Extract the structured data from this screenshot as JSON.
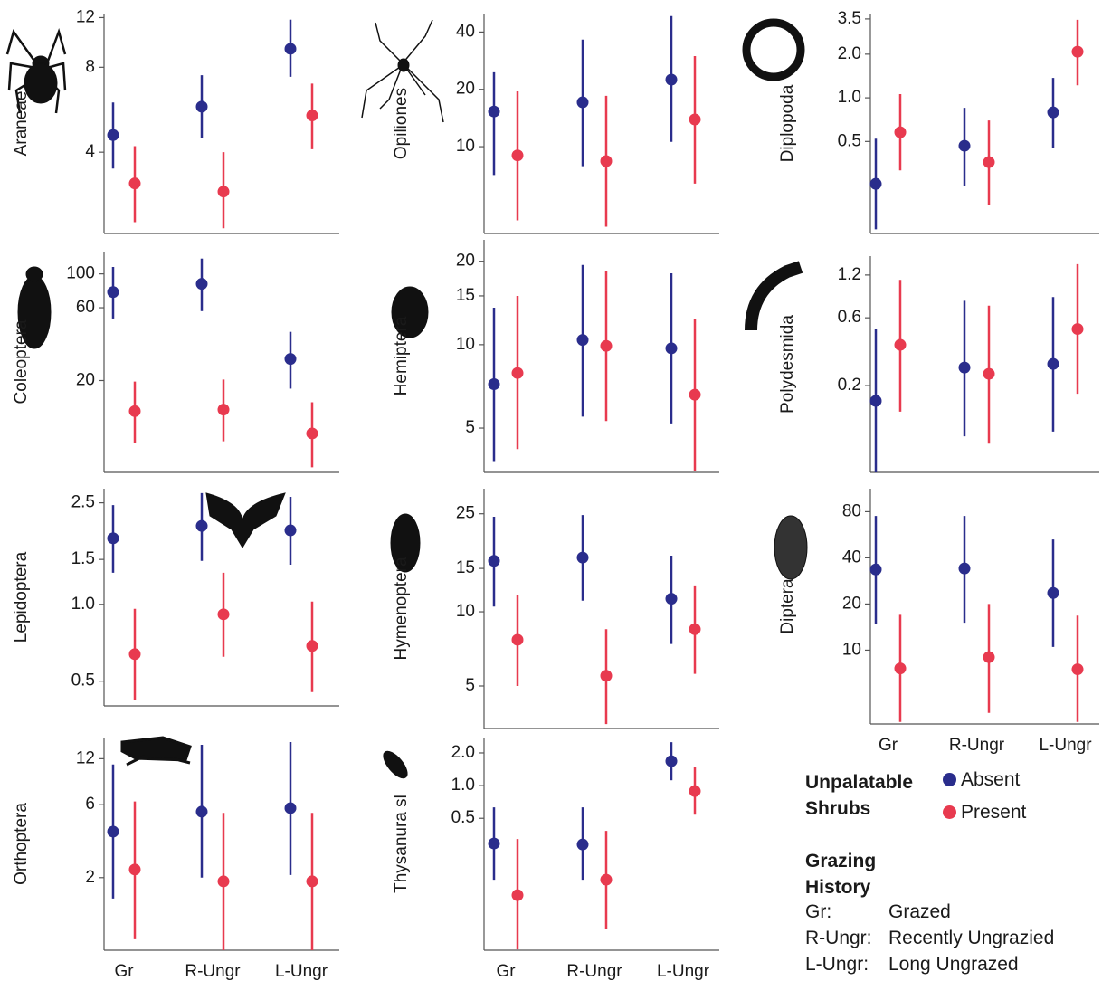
{
  "chart_data": [
    {
      "type": "errorbar",
      "ylabel": "Araneae",
      "log_scale": true,
      "ylim": [
        2.06,
        12.4
      ],
      "yticks": [
        4,
        8,
        12
      ],
      "categories": [
        null,
        null,
        null
      ],
      "series": [
        {
          "values": [
            4.6,
            5.8,
            9.3
          ],
          "lower": [
            3.5,
            4.5,
            7.4
          ],
          "upper": [
            6.0,
            7.5,
            11.8
          ]
        },
        {
          "values": [
            3.1,
            2.9,
            5.4
          ],
          "lower": [
            2.26,
            2.15,
            4.1
          ],
          "upper": [
            4.2,
            4.0,
            7.0
          ]
        }
      ]
    },
    {
      "type": "errorbar",
      "ylabel": "Opiliones",
      "log_scale": true,
      "ylim": [
        3.5,
        50
      ],
      "yticks": [
        10,
        20,
        40
      ],
      "categories": [
        null,
        null,
        null
      ],
      "series": [
        {
          "values": [
            15.3,
            17.1,
            22.5
          ],
          "lower": [
            7.1,
            7.9,
            10.6
          ],
          "upper": [
            24.6,
            36.5,
            48.5
          ]
        },
        {
          "values": [
            9.0,
            8.4,
            13.9
          ],
          "lower": [
            4.1,
            3.8,
            6.4
          ],
          "upper": [
            19.5,
            18.5,
            29.9
          ]
        }
      ]
    },
    {
      "type": "errorbar",
      "ylabel": "Diplopoda",
      "log_scale": true,
      "ylim": [
        0.116,
        3.81
      ],
      "yticks": [
        0.5,
        {
          "value": 1,
          "label": "1.0"
        },
        {
          "value": 2,
          "label": "2.0"
        },
        3.5
      ],
      "categories": [
        null,
        null,
        null
      ],
      "series": [
        {
          "values": [
            0.255,
            0.467,
            0.794
          ],
          "lower": [
            0.124,
            0.247,
            0.453
          ],
          "upper": [
            0.523,
            0.854,
            1.37
          ]
        },
        {
          "values": [
            0.579,
            0.36,
            2.08
          ],
          "lower": [
            0.316,
            0.183,
            1.22
          ],
          "upper": [
            1.06,
            0.698,
            3.45
          ]
        }
      ]
    },
    {
      "type": "errorbar",
      "ylabel": "Coleoptera",
      "log_scale": true,
      "ylim": [
        5.0,
        140
      ],
      "yticks": [
        20,
        60,
        100
      ],
      "categories": [
        null,
        null,
        null
      ],
      "series": [
        {
          "values": [
            76,
            86,
            27.7
          ],
          "lower": [
            51,
            57,
            17.7
          ],
          "upper": [
            111,
            126,
            41.7
          ]
        },
        {
          "values": [
            12.6,
            12.9,
            9.0
          ],
          "lower": [
            7.8,
            8.0,
            5.4
          ],
          "upper": [
            19.7,
            20.3,
            14.4
          ]
        }
      ]
    },
    {
      "type": "errorbar",
      "ylabel": "Hemiptera",
      "log_scale": true,
      "ylim": [
        3.46,
        23.9
      ],
      "yticks": [
        5,
        10,
        15,
        20
      ],
      "categories": [
        null,
        null,
        null
      ],
      "series": [
        {
          "values": [
            7.2,
            10.4,
            9.7
          ],
          "lower": [
            3.8,
            5.5,
            5.2
          ],
          "upper": [
            13.6,
            19.4,
            18.1
          ]
        },
        {
          "values": [
            7.9,
            9.9,
            6.6
          ],
          "lower": [
            4.2,
            5.3,
            3.5
          ],
          "upper": [
            15,
            18.4,
            12.4
          ]
        }
      ]
    },
    {
      "type": "errorbar",
      "ylabel": "Polydesmida",
      "log_scale": true,
      "ylim": [
        0.049,
        1.63
      ],
      "yticks": [
        0.2,
        0.6,
        1.2
      ],
      "categories": [
        null,
        null,
        null
      ],
      "series": [
        {
          "values": [
            0.156,
            0.268,
            0.284
          ],
          "lower": [
            0.049,
            0.088,
            0.095
          ],
          "upper": [
            0.497,
            0.79,
            0.84
          ]
        },
        {
          "values": [
            0.387,
            0.242,
            0.5
          ],
          "lower": [
            0.131,
            0.078,
            0.175
          ],
          "upper": [
            1.11,
            0.73,
            1.43
          ]
        }
      ]
    },
    {
      "type": "errorbar",
      "ylabel": "Lepidoptera",
      "log_scale": true,
      "ylim": [
        0.4,
        2.84
      ],
      "yticks": [
        0.5,
        {
          "value": 1,
          "label": "1.0"
        },
        1.5,
        2.5
      ],
      "categories": [
        null,
        null,
        null
      ],
      "series": [
        {
          "values": [
            1.815,
            2.03,
            1.95
          ],
          "lower": [
            1.33,
            1.48,
            1.43
          ],
          "upper": [
            2.45,
            2.73,
            2.64
          ]
        },
        {
          "values": [
            0.638,
            0.914,
            0.687
          ],
          "lower": [
            0.42,
            0.623,
            0.453
          ],
          "upper": [
            0.96,
            1.33,
            1.025
          ]
        }
      ]
    },
    {
      "type": "errorbar",
      "ylabel": "Hymenoptera",
      "log_scale": true,
      "ylim": [
        3.36,
        31.6
      ],
      "yticks": [
        5,
        10,
        15,
        25
      ],
      "categories": [
        null,
        null,
        null
      ],
      "series": [
        {
          "values": [
            16.1,
            16.6,
            11.3
          ],
          "lower": [
            10.5,
            11.1,
            7.4
          ],
          "upper": [
            24.3,
            24.7,
            16.9
          ]
        },
        {
          "values": [
            7.7,
            5.5,
            8.5
          ],
          "lower": [
            5.0,
            3.5,
            5.6
          ],
          "upper": [
            11.7,
            8.5,
            12.8
          ]
        }
      ]
    },
    {
      "type": "errorbar",
      "ylabel": "Diptera",
      "log_scale": true,
      "ylim": [
        3.3,
        113
      ],
      "yticks": [
        10,
        20,
        40,
        80
      ],
      "categories": [
        "Gr",
        "R-Ungr",
        "L-Ungr"
      ],
      "series": [
        {
          "values": [
            33.6,
            34.1,
            23.6
          ],
          "lower": [
            14.8,
            15.1,
            10.5
          ],
          "upper": [
            75,
            75,
            52.7
          ]
        },
        {
          "values": [
            7.6,
            9.0,
            7.5
          ],
          "lower": [
            3.4,
            3.9,
            3.4
          ],
          "upper": [
            17,
            20,
            16.8
          ]
        }
      ]
    },
    {
      "type": "errorbar",
      "ylabel": "Orthoptera",
      "log_scale": true,
      "ylim": [
        0.67,
        16.5
      ],
      "yticks": [
        2,
        6,
        12
      ],
      "categories": [
        "Gr",
        "R-Ungr",
        "L-Ungr"
      ],
      "series": [
        {
          "values": [
            4.0,
            5.4,
            5.7
          ],
          "lower": [
            1.46,
            2.0,
            2.08
          ],
          "upper": [
            11.0,
            14.8,
            15.4
          ]
        },
        {
          "values": [
            2.26,
            1.89,
            1.89
          ],
          "lower": [
            0.79,
            0.67,
            0.67
          ],
          "upper": [
            6.3,
            5.3,
            5.3
          ]
        }
      ]
    },
    {
      "type": "errorbar",
      "ylabel": "Thysanura sl",
      "log_scale": true,
      "ylim": [
        0.0305,
        2.77
      ],
      "yticks": [
        0.5,
        {
          "value": 1,
          "label": "1.0"
        },
        {
          "value": 2,
          "label": "2.0"
        }
      ],
      "categories": [
        "Gr",
        "R-Ungr",
        "L-Ungr"
      ],
      "series": [
        {
          "values": [
            0.293,
            0.287,
            1.68
          ],
          "lower": [
            0.136,
            0.136,
            1.12
          ],
          "upper": [
            0.63,
            0.63,
            2.51
          ]
        },
        {
          "values": [
            0.098,
            0.136,
            0.89
          ],
          "lower": [
            0.031,
            0.048,
            0.54
          ],
          "upper": [
            0.322,
            0.383,
            1.47
          ]
        }
      ]
    }
  ],
  "legend": {
    "title": "Unpalatable Shrubs",
    "items": [
      {
        "name": "Absent",
        "color": "#2a2d8c"
      },
      {
        "name": "Present",
        "color": "#e83a4f"
      }
    ]
  },
  "grazing_history": {
    "title": "Grazing History",
    "rows": [
      [
        "Gr:",
        "Grazed"
      ],
      [
        "R-Ungr:",
        "Recently Ungrazied"
      ],
      [
        "L-Ungr:",
        "Long Ungrazed"
      ]
    ]
  }
}
